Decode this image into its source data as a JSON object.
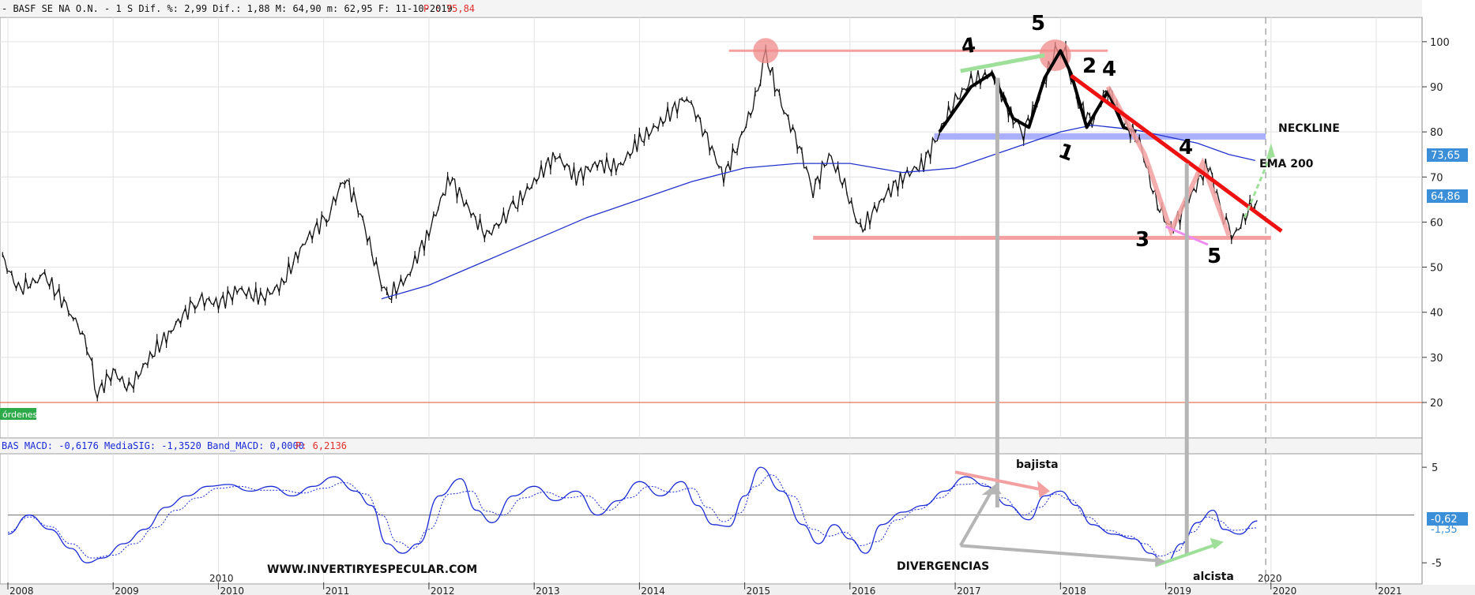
{
  "header": {
    "main": "- BASF SE NA O.N. -  1 S Dif. %: 2,99 Dif.: 1,88 M: 64,90 m: 62,95 F: 11-10-2019",
    "main_p": "P : 75,84",
    "macd": "BAS MACD: -0,6176 MediaSIG: -1,3520 Band_MACD: 0,0000",
    "macd_p": "P: 6,2136"
  },
  "orders_label": "órdenes",
  "price_badges": {
    "ema": "73,65",
    "last": "64,86"
  },
  "macd_badges": {
    "macd": "-0,62",
    "sig": "-1,35"
  },
  "annotations": {
    "neckline": "NECKLINE",
    "ema": "EMA 200",
    "bajista": "bajista",
    "alcista": "alcista",
    "divergencias": "DIVERGENCIAS",
    "website": "WWW.INVERTIRYESPECULAR.COM",
    "year_2010": "2010",
    "year_2020": "2020",
    "hand_1": "1",
    "hand_2": "2",
    "hand_3": "3",
    "hand_4a": "4",
    "hand_4b": "4",
    "hand_4c": "4",
    "hand_5": "5",
    "hand_5b": "5"
  },
  "colors": {
    "price": "#111111",
    "ema": "#2233cc",
    "macd": "#1a2bd6",
    "neckline": "#aab0ff",
    "support": "#f5a0a0",
    "trend": "#ee1111",
    "arrow_green": "#9ee09a",
    "arrow_gray": "#b5b5b5",
    "zero_line": "#888888",
    "ref_line": "#e05030"
  },
  "chart_data": {
    "type": "line",
    "x_ticks": [
      "2008",
      "2009",
      "2010",
      "2011",
      "2012",
      "2013",
      "2014",
      "2015",
      "2016",
      "2017",
      "2018",
      "2019",
      "2020",
      "2021"
    ],
    "price": {
      "y_ticks": [
        20,
        30,
        40,
        50,
        60,
        70,
        80,
        90,
        100
      ],
      "ylim": [
        13,
        104
      ],
      "points": [
        [
          2007.95,
          52
        ],
        [
          2008.1,
          45
        ],
        [
          2008.35,
          48
        ],
        [
          2008.6,
          40
        ],
        [
          2008.75,
          33
        ],
        [
          2008.85,
          22
        ],
        [
          2009.0,
          27
        ],
        [
          2009.15,
          23
        ],
        [
          2009.35,
          30
        ],
        [
          2009.55,
          36
        ],
        [
          2009.8,
          43
        ],
        [
          2010.0,
          42
        ],
        [
          2010.2,
          45
        ],
        [
          2010.4,
          43
        ],
        [
          2010.6,
          46
        ],
        [
          2010.8,
          55
        ],
        [
          2011.05,
          62
        ],
        [
          2011.2,
          70
        ],
        [
          2011.35,
          62
        ],
        [
          2011.5,
          50
        ],
        [
          2011.6,
          43
        ],
        [
          2011.8,
          48
        ],
        [
          2012.0,
          58
        ],
        [
          2012.2,
          70
        ],
        [
          2012.4,
          62
        ],
        [
          2012.55,
          57
        ],
        [
          2012.8,
          63
        ],
        [
          2013.0,
          69
        ],
        [
          2013.2,
          75
        ],
        [
          2013.4,
          70
        ],
        [
          2013.6,
          73
        ],
        [
          2013.8,
          72
        ],
        [
          2014.0,
          78
        ],
        [
          2014.2,
          82
        ],
        [
          2014.45,
          88
        ],
        [
          2014.6,
          81
        ],
        [
          2014.8,
          70
        ],
        [
          2014.95,
          78
        ],
        [
          2015.1,
          87
        ],
        [
          2015.2,
          97
        ],
        [
          2015.35,
          86
        ],
        [
          2015.5,
          78
        ],
        [
          2015.65,
          67
        ],
        [
          2015.8,
          75
        ],
        [
          2015.95,
          68
        ],
        [
          2016.1,
          58
        ],
        [
          2016.3,
          65
        ],
        [
          2016.5,
          70
        ],
        [
          2016.7,
          73
        ],
        [
          2016.85,
          80
        ],
        [
          2017.0,
          87
        ],
        [
          2017.15,
          91
        ],
        [
          2017.35,
          93
        ],
        [
          2017.55,
          83
        ],
        [
          2017.65,
          80
        ],
        [
          2017.8,
          88
        ],
        [
          2017.95,
          98
        ],
        [
          2018.05,
          97
        ],
        [
          2018.15,
          87
        ],
        [
          2018.3,
          82
        ],
        [
          2018.45,
          90
        ],
        [
          2018.6,
          82
        ],
        [
          2018.75,
          78
        ],
        [
          2018.9,
          65
        ],
        [
          2019.05,
          58
        ],
        [
          2019.2,
          64
        ],
        [
          2019.4,
          73
        ],
        [
          2019.55,
          61
        ],
        [
          2019.65,
          57
        ],
        [
          2019.8,
          63
        ],
        [
          2019.87,
          64.86
        ]
      ],
      "ema200": [
        [
          2011.55,
          43
        ],
        [
          2012.0,
          46
        ],
        [
          2012.5,
          51
        ],
        [
          2013.0,
          56
        ],
        [
          2013.5,
          61
        ],
        [
          2014.0,
          65
        ],
        [
          2014.5,
          69
        ],
        [
          2015.0,
          72
        ],
        [
          2015.5,
          73
        ],
        [
          2016.0,
          73
        ],
        [
          2016.5,
          71
        ],
        [
          2017.0,
          72
        ],
        [
          2017.5,
          76
        ],
        [
          2018.0,
          80
        ],
        [
          2018.3,
          81.5
        ],
        [
          2018.7,
          80.5
        ],
        [
          2019.0,
          79
        ],
        [
          2019.3,
          77.5
        ],
        [
          2019.6,
          75
        ],
        [
          2019.85,
          73.65
        ]
      ],
      "neckline_y": 79,
      "support_y": 56.5,
      "top_y": 98,
      "ref_y": 20
    },
    "macd": {
      "y_ticks": [
        5,
        -5
      ],
      "ylim": [
        -6.8,
        6
      ],
      "points": [
        [
          2008.0,
          -2
        ],
        [
          2008.2,
          0
        ],
        [
          2008.4,
          -1.5
        ],
        [
          2008.6,
          -3.5
        ],
        [
          2008.75,
          -5
        ],
        [
          2008.9,
          -4.5
        ],
        [
          2009.1,
          -3
        ],
        [
          2009.3,
          -1.5
        ],
        [
          2009.5,
          0.8
        ],
        [
          2009.7,
          2
        ],
        [
          2009.9,
          3
        ],
        [
          2010.1,
          3.2
        ],
        [
          2010.3,
          2.5
        ],
        [
          2010.5,
          3
        ],
        [
          2010.7,
          2
        ],
        [
          2010.9,
          3
        ],
        [
          2011.1,
          4
        ],
        [
          2011.3,
          2.5
        ],
        [
          2011.45,
          1
        ],
        [
          2011.6,
          -3
        ],
        [
          2011.75,
          -4
        ],
        [
          2011.9,
          -3
        ],
        [
          2012.1,
          2
        ],
        [
          2012.3,
          3.8
        ],
        [
          2012.45,
          0.5
        ],
        [
          2012.6,
          -0.8
        ],
        [
          2012.8,
          2
        ],
        [
          2013.0,
          3
        ],
        [
          2013.2,
          1.5
        ],
        [
          2013.4,
          2.5
        ],
        [
          2013.6,
          0
        ],
        [
          2013.8,
          1.5
        ],
        [
          2014.0,
          3.5
        ],
        [
          2014.2,
          2
        ],
        [
          2014.4,
          3.5
        ],
        [
          2014.55,
          1
        ],
        [
          2014.7,
          -1
        ],
        [
          2014.85,
          -1.2
        ],
        [
          2015.0,
          2
        ],
        [
          2015.15,
          5
        ],
        [
          2015.35,
          2.5
        ],
        [
          2015.55,
          -1
        ],
        [
          2015.7,
          -3
        ],
        [
          2015.85,
          -1
        ],
        [
          2016.0,
          -2.5
        ],
        [
          2016.15,
          -4
        ],
        [
          2016.3,
          -1
        ],
        [
          2016.5,
          0.3
        ],
        [
          2016.7,
          1
        ],
        [
          2016.9,
          2.5
        ],
        [
          2017.1,
          4
        ],
        [
          2017.3,
          3
        ],
        [
          2017.5,
          1
        ],
        [
          2017.7,
          -0.5
        ],
        [
          2017.85,
          2
        ],
        [
          2018.0,
          2.5
        ],
        [
          2018.15,
          1
        ],
        [
          2018.3,
          -1
        ],
        [
          2018.5,
          -2
        ],
        [
          2018.7,
          -2.5
        ],
        [
          2018.85,
          -4
        ],
        [
          2019.0,
          -5
        ],
        [
          2019.15,
          -3
        ],
        [
          2019.3,
          -0.8
        ],
        [
          2019.45,
          0.5
        ],
        [
          2019.55,
          -1.5
        ],
        [
          2019.7,
          -2
        ],
        [
          2019.87,
          -0.62
        ]
      ],
      "signal": [
        [
          2008.0,
          -1.8
        ],
        [
          2008.2,
          -0.2
        ],
        [
          2008.4,
          -1.2
        ],
        [
          2008.6,
          -3
        ],
        [
          2008.8,
          -4.5
        ],
        [
          2009.0,
          -4.2
        ],
        [
          2009.2,
          -3
        ],
        [
          2009.4,
          -1.3
        ],
        [
          2009.6,
          0.5
        ],
        [
          2009.8,
          1.8
        ],
        [
          2010.0,
          2.8
        ],
        [
          2010.2,
          3
        ],
        [
          2010.4,
          2.6
        ],
        [
          2010.6,
          2.6
        ],
        [
          2010.8,
          2.3
        ],
        [
          2011.0,
          2.8
        ],
        [
          2011.2,
          3.4
        ],
        [
          2011.4,
          2.2
        ],
        [
          2011.55,
          0
        ],
        [
          2011.7,
          -2.8
        ],
        [
          2011.85,
          -3.5
        ],
        [
          2012.0,
          -1.5
        ],
        [
          2012.2,
          2.2
        ],
        [
          2012.4,
          2.5
        ],
        [
          2012.55,
          0.4
        ],
        [
          2012.7,
          0
        ],
        [
          2012.9,
          1.8
        ],
        [
          2013.1,
          2.4
        ],
        [
          2013.3,
          1.8
        ],
        [
          2013.5,
          2
        ],
        [
          2013.7,
          0.5
        ],
        [
          2013.9,
          1.8
        ],
        [
          2014.1,
          3
        ],
        [
          2014.3,
          2.4
        ],
        [
          2014.5,
          2.8
        ],
        [
          2014.65,
          0.8
        ],
        [
          2014.8,
          -0.7
        ],
        [
          2014.95,
          0.2
        ],
        [
          2015.1,
          3
        ],
        [
          2015.25,
          4.2
        ],
        [
          2015.45,
          2
        ],
        [
          2015.65,
          -1.5
        ],
        [
          2015.8,
          -2.2
        ],
        [
          2015.95,
          -1.8
        ],
        [
          2016.1,
          -3.2
        ],
        [
          2016.25,
          -2.8
        ],
        [
          2016.45,
          -0.5
        ],
        [
          2016.65,
          0.6
        ],
        [
          2016.85,
          1.8
        ],
        [
          2017.05,
          3.2
        ],
        [
          2017.25,
          3.3
        ],
        [
          2017.45,
          1.8
        ],
        [
          2017.65,
          0
        ],
        [
          2017.8,
          0.8
        ],
        [
          2017.95,
          2.2
        ],
        [
          2018.1,
          1.6
        ],
        [
          2018.25,
          -0.2
        ],
        [
          2018.45,
          -1.6
        ],
        [
          2018.65,
          -2.2
        ],
        [
          2018.8,
          -3
        ],
        [
          2018.95,
          -4.3
        ],
        [
          2019.1,
          -3.8
        ],
        [
          2019.25,
          -1.8
        ],
        [
          2019.4,
          -0.2
        ],
        [
          2019.5,
          -0.6
        ],
        [
          2019.65,
          -1.6
        ],
        [
          2019.87,
          -1.35
        ]
      ]
    }
  }
}
